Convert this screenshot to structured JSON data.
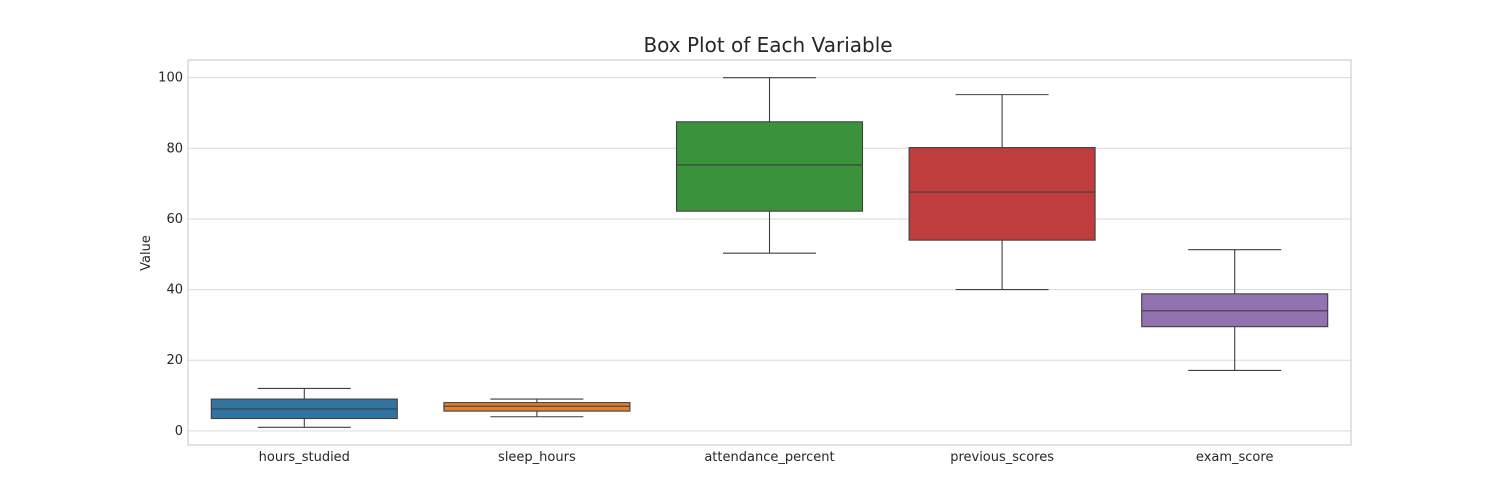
{
  "chart_data": {
    "type": "box",
    "title": "Box Plot of Each Variable",
    "xlabel": "",
    "ylabel": "Value",
    "ylim": [
      -4,
      105
    ],
    "yticks": [
      0,
      20,
      40,
      60,
      80,
      100
    ],
    "grid": "horizontal",
    "categories": [
      "hours_studied",
      "sleep_hours",
      "attendance_percent",
      "previous_scores",
      "exam_score"
    ],
    "boxes": [
      {
        "category": "hours_studied",
        "min": 1,
        "q1": 3.5,
        "median": 6.2,
        "q3": 9.0,
        "max": 12,
        "color": "#3274a1"
      },
      {
        "category": "sleep_hours",
        "min": 4,
        "q1": 5.6,
        "median": 7.0,
        "q3": 8.0,
        "max": 9,
        "color": "#e1812c"
      },
      {
        "category": "attendance_percent",
        "min": 50.3,
        "q1": 62.2,
        "median": 75.3,
        "q3": 87.5,
        "max": 100,
        "color": "#3a923a"
      },
      {
        "category": "previous_scores",
        "min": 40,
        "q1": 54.0,
        "median": 67.6,
        "q3": 80.2,
        "max": 95.2,
        "color": "#c03d3e"
      },
      {
        "category": "exam_score",
        "min": 17.1,
        "q1": 29.5,
        "median": 34.0,
        "q3": 38.8,
        "max": 51.3,
        "color": "#9372b2"
      }
    ]
  }
}
